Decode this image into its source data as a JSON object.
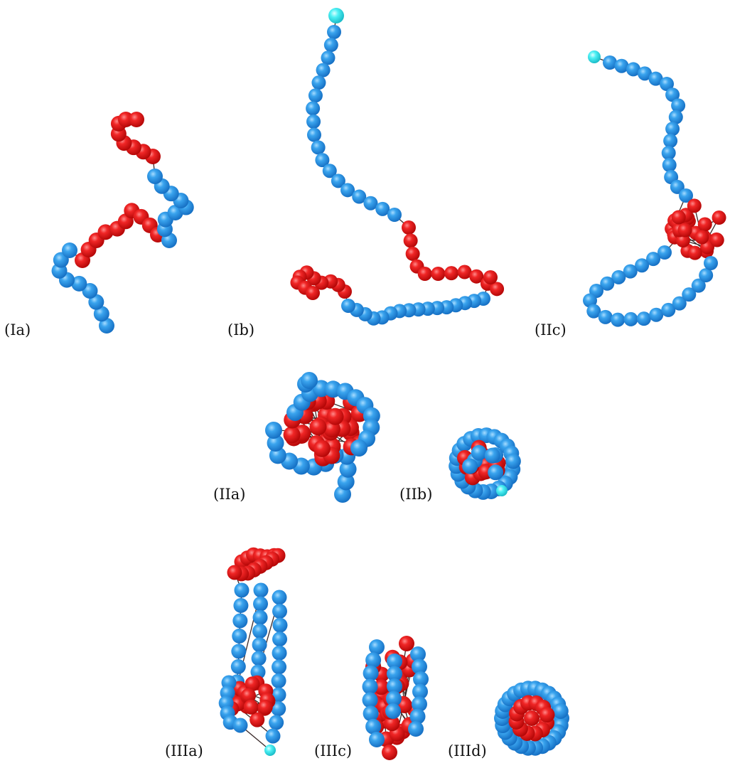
{
  "colors": {
    "hydrophobic": "#e01a1a",
    "polar": "#2b96e6",
    "terminal": "#33e6ee",
    "bond": "#3a2a2a",
    "label": "#111111"
  },
  "panels": [
    {
      "id": "Ia",
      "label": "(Ia)"
    },
    {
      "id": "Ib",
      "label": "(Ib)"
    },
    {
      "id": "IIc",
      "label": "(IIc)"
    },
    {
      "id": "IIa",
      "label": "(IIa)"
    },
    {
      "id": "IIb",
      "label": "(IIb)"
    },
    {
      "id": "IIIa",
      "label": "(IIIa)"
    },
    {
      "id": "IIIc",
      "label": "(IIIc)"
    },
    {
      "id": "IIId",
      "label": "(IIId)"
    }
  ]
}
